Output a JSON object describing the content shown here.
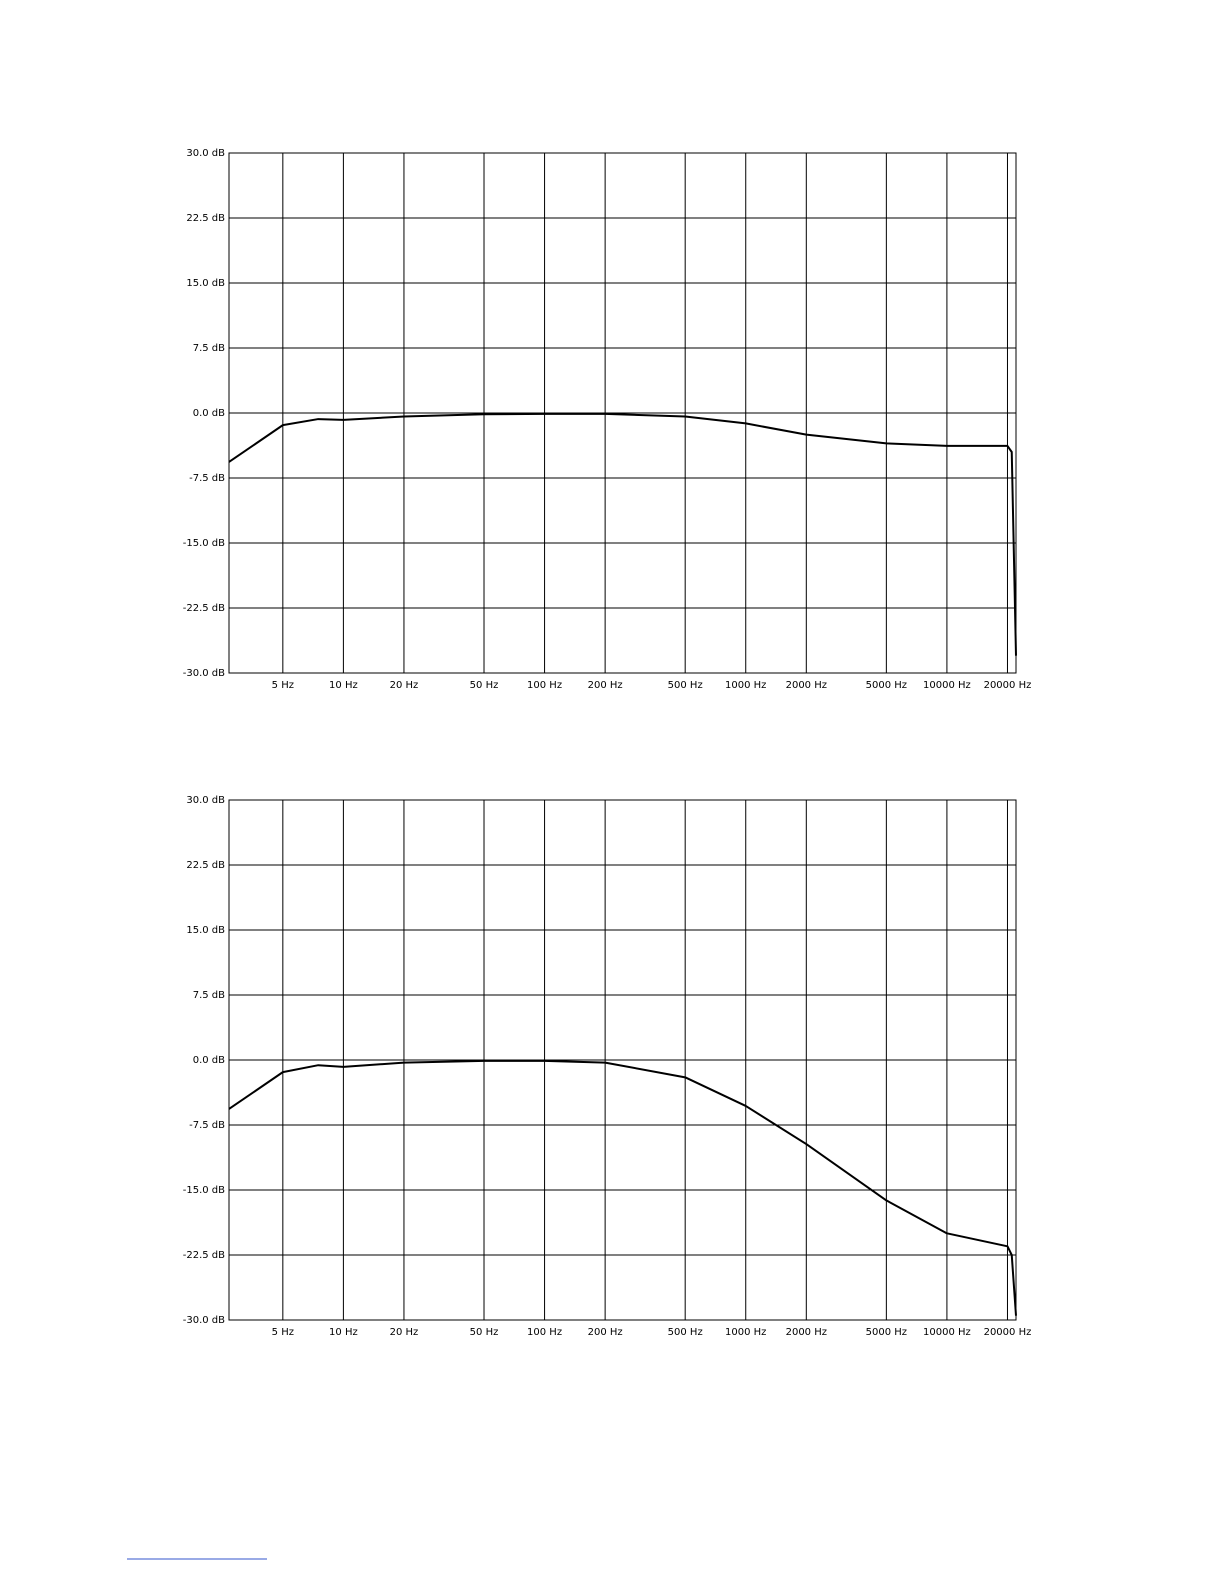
{
  "chart_data": [
    {
      "type": "line",
      "xscale": "log",
      "grid": true,
      "color": "#000000",
      "x": [
        2.7,
        5,
        7.5,
        10,
        20,
        50,
        100,
        200,
        500,
        1000,
        2000,
        5000,
        10000,
        20000,
        21000,
        22050
      ],
      "values": [
        -5.65,
        -1.4,
        -0.7,
        -0.8,
        -0.4,
        -0.15,
        -0.1,
        -0.1,
        -0.4,
        -1.2,
        -2.5,
        -3.5,
        -3.8,
        -3.8,
        -4.5,
        -28
      ],
      "xlim": [
        2.7,
        22050
      ],
      "ylim": [
        -30,
        30
      ],
      "xticks": [
        {
          "value": 5,
          "label": "5 Hz"
        },
        {
          "value": 10,
          "label": "10 Hz"
        },
        {
          "value": 20,
          "label": "20 Hz"
        },
        {
          "value": 50,
          "label": "50 Hz"
        },
        {
          "value": 100,
          "label": "100 Hz"
        },
        {
          "value": 200,
          "label": "200 Hz"
        },
        {
          "value": 500,
          "label": "500 Hz"
        },
        {
          "value": 1000,
          "label": "1000 Hz"
        },
        {
          "value": 2000,
          "label": "2000 Hz"
        },
        {
          "value": 5000,
          "label": "5000 Hz"
        },
        {
          "value": 10000,
          "label": "10000 Hz"
        },
        {
          "value": 20000,
          "label": "20000 Hz"
        }
      ],
      "yticks": [
        {
          "value": 30,
          "label": "30.0 dB"
        },
        {
          "value": 22.5,
          "label": "22.5 dB"
        },
        {
          "value": 15,
          "label": "15.0 dB"
        },
        {
          "value": 7.5,
          "label": "7.5 dB"
        },
        {
          "value": 0,
          "label": "0.0 dB"
        },
        {
          "value": -7.5,
          "label": "-7.5 dB"
        },
        {
          "value": -15,
          "label": "-15.0 dB"
        },
        {
          "value": -22.5,
          "label": "-22.5 dB"
        },
        {
          "value": -30,
          "label": "-30.0 dB"
        }
      ]
    },
    {
      "type": "line",
      "xscale": "log",
      "grid": true,
      "color": "#000000",
      "x": [
        2.7,
        5,
        7.5,
        10,
        20,
        50,
        100,
        200,
        500,
        1000,
        2000,
        5000,
        10000,
        20000,
        21000,
        22050
      ],
      "values": [
        -5.65,
        -1.4,
        -0.6,
        -0.8,
        -0.3,
        -0.1,
        -0.1,
        -0.3,
        -2.0,
        -5.3,
        -9.7,
        -16.2,
        -20.0,
        -21.5,
        -22.5,
        -29.5
      ],
      "xlim": [
        2.7,
        22050
      ],
      "ylim": [
        -30,
        30
      ],
      "xticks": [
        {
          "value": 5,
          "label": "5 Hz"
        },
        {
          "value": 10,
          "label": "10 Hz"
        },
        {
          "value": 20,
          "label": "20 Hz"
        },
        {
          "value": 50,
          "label": "50 Hz"
        },
        {
          "value": 100,
          "label": "100 Hz"
        },
        {
          "value": 200,
          "label": "200 Hz"
        },
        {
          "value": 500,
          "label": "500 Hz"
        },
        {
          "value": 1000,
          "label": "1000 Hz"
        },
        {
          "value": 2000,
          "label": "2000 Hz"
        },
        {
          "value": 5000,
          "label": "5000 Hz"
        },
        {
          "value": 10000,
          "label": "10000 Hz"
        },
        {
          "value": 20000,
          "label": "20000 Hz"
        }
      ],
      "yticks": [
        {
          "value": 30,
          "label": "30.0 dB"
        },
        {
          "value": 22.5,
          "label": "22.5 dB"
        },
        {
          "value": 15,
          "label": "15.0 dB"
        },
        {
          "value": 7.5,
          "label": "7.5 dB"
        },
        {
          "value": 0,
          "label": "0.0 dB"
        },
        {
          "value": -7.5,
          "label": "-7.5 dB"
        },
        {
          "value": -15,
          "label": "-15.0 dB"
        },
        {
          "value": -22.5,
          "label": "-22.5 dB"
        },
        {
          "value": -30,
          "label": "-30.0 dB"
        }
      ]
    }
  ]
}
